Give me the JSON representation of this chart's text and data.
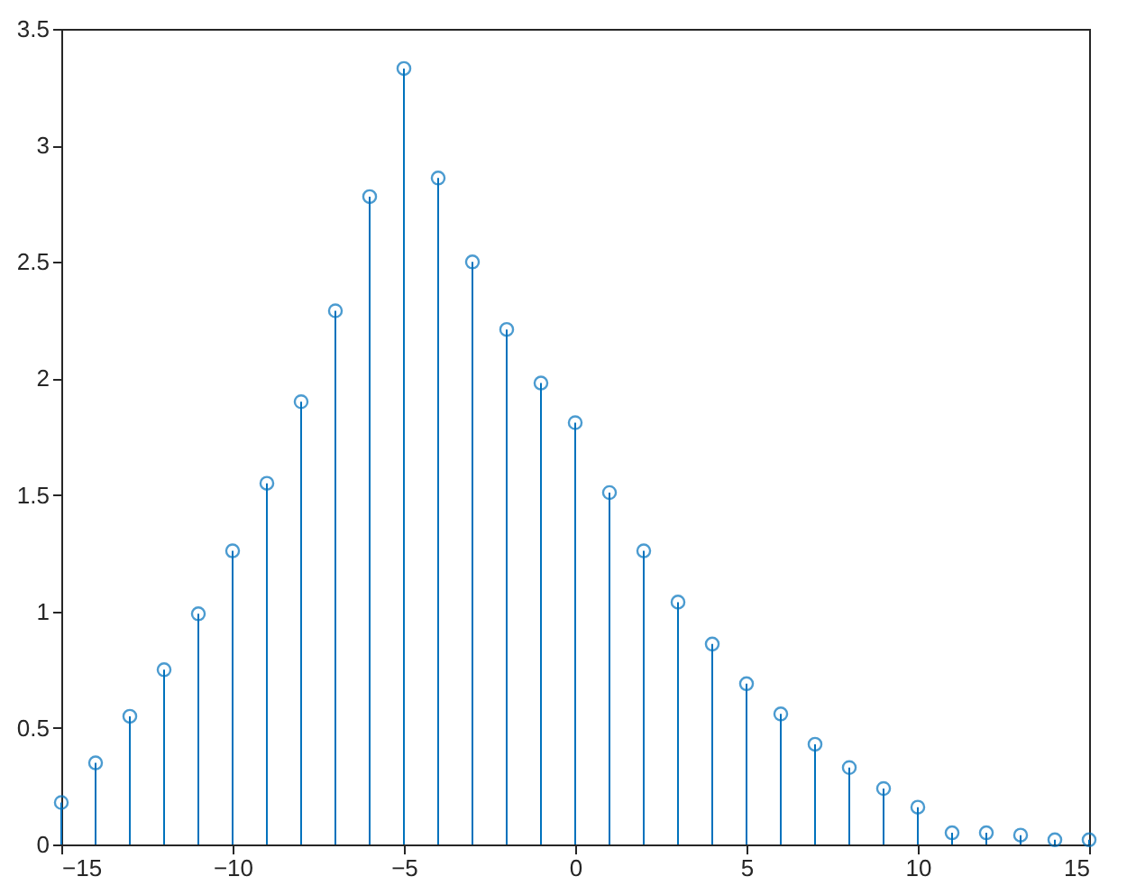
{
  "chart_data": {
    "type": "lollipop",
    "x": [
      -15,
      -14,
      -13,
      -12,
      -11,
      -10,
      -9,
      -8,
      -7,
      -6,
      -5,
      -4,
      -3,
      -2,
      -1,
      0,
      1,
      2,
      3,
      4,
      5,
      6,
      7,
      8,
      9,
      10,
      11,
      12,
      13,
      14,
      15
    ],
    "values": [
      0.18,
      0.35,
      0.55,
      0.75,
      0.99,
      1.26,
      1.55,
      1.9,
      2.29,
      2.78,
      3.33,
      2.86,
      2.5,
      2.21,
      1.98,
      1.81,
      1.51,
      1.26,
      1.04,
      0.86,
      0.69,
      0.56,
      0.43,
      0.33,
      0.24,
      0.16,
      0.05,
      0.05,
      0.04,
      0.02,
      0.02
    ],
    "color": "#0072bd",
    "marker": "circle",
    "grid": false,
    "xlim": [
      -15,
      15
    ],
    "xticks": [
      -15,
      -10,
      -5,
      0,
      5,
      10,
      15
    ],
    "ylim": [
      0,
      3.5
    ],
    "yticks": [
      0,
      0.5,
      1,
      1.5,
      2,
      2.5,
      3,
      3.5
    ]
  }
}
